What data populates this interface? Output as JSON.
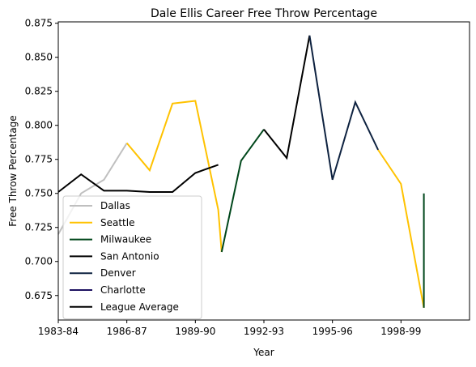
{
  "chart_data": {
    "type": "line",
    "title": "Dale Ellis Career Free Throw Percentage",
    "xlabel": "Year",
    "ylabel": "Free Throw Percentage",
    "xlim": [
      1983,
      2001
    ],
    "ylim": [
      0.657,
      0.876
    ],
    "x_ticks": [
      {
        "value": 1983,
        "label": "1983-84"
      },
      {
        "value": 1986,
        "label": "1986-87"
      },
      {
        "value": 1989,
        "label": "1989-90"
      },
      {
        "value": 1992,
        "label": "1992-93"
      },
      {
        "value": 1995,
        "label": "1995-96"
      },
      {
        "value": 1998,
        "label": "1998-99"
      }
    ],
    "y_ticks": [
      0.675,
      0.7,
      0.725,
      0.75,
      0.775,
      0.8,
      0.825,
      0.85,
      0.875
    ],
    "grid": false,
    "legend_position": "lower-left",
    "series": [
      {
        "name": "Dallas",
        "color": "#BFBFBF",
        "x": [
          1983,
          1984,
          1985,
          1986
        ],
        "y": [
          0.72,
          0.75,
          0.76,
          0.787
        ]
      },
      {
        "name": "Seattle",
        "color": "#FFC200",
        "x": [
          1986,
          1987,
          1988,
          1989,
          1990,
          1990.15
        ],
        "y": [
          0.787,
          0.767,
          0.816,
          0.818,
          0.738,
          0.707
        ]
      },
      {
        "name": "Milwaukee",
        "color": "#00471B",
        "x": [
          1990.15,
          1991,
          1992
        ],
        "y": [
          0.707,
          0.774,
          0.797
        ]
      },
      {
        "name": "San Antonio",
        "color": "#000000",
        "x": [
          1992,
          1993,
          1994
        ],
        "y": [
          0.797,
          0.776,
          0.866
        ]
      },
      {
        "name": "Denver",
        "color": "#0E2240",
        "x": [
          1994,
          1995,
          1996,
          1997
        ],
        "y": [
          0.866,
          0.76,
          0.817,
          0.782
        ]
      },
      {
        "name": "Seattle",
        "color": "#FFC200",
        "legend": false,
        "x": [
          1997,
          1998,
          1999
        ],
        "y": [
          0.782,
          0.757,
          0.666
        ]
      },
      {
        "name": "Milwaukee",
        "color": "#00471B",
        "legend": false,
        "x": [
          1999,
          1999
        ],
        "y": [
          0.666,
          0.75
        ]
      },
      {
        "name": "Charlotte",
        "color": "#1D1160",
        "x": [],
        "y": []
      },
      {
        "name": "League Average",
        "color": "#000000",
        "x": [
          1983,
          1984,
          1985,
          1986,
          1987,
          1988,
          1989,
          1990
        ],
        "y": [
          0.751,
          0.764,
          0.752,
          0.752,
          0.751,
          0.751,
          0.765,
          0.771
        ]
      }
    ]
  }
}
